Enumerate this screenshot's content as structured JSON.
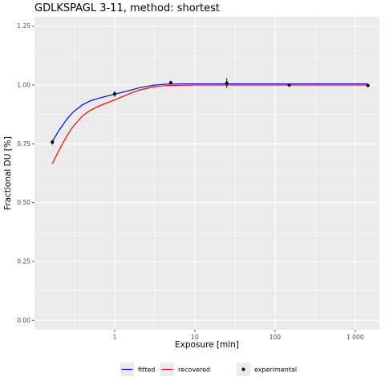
{
  "chart_data": {
    "type": "line",
    "title": "GDLKSPAGL 3-11, method: shortest",
    "xlabel": "Exposure [min]",
    "ylabel": "Fractional DU [%]",
    "x_scale": "log10",
    "xlim": [
      0.1,
      2000
    ],
    "ylim": [
      -0.04,
      1.29
    ],
    "x_ticks": [
      1,
      10,
      100,
      1000
    ],
    "x_tick_labels": [
      "1",
      "10",
      "100",
      "1 000"
    ],
    "y_ticks": [
      0,
      0.25,
      0.5,
      0.75,
      1.0,
      1.25
    ],
    "y_tick_labels": [
      "0.00",
      "0.25",
      "0.50",
      "0.75",
      "1.00",
      "1.25"
    ],
    "grid": true,
    "legend_position": "bottom",
    "series": [
      {
        "name": "fitted",
        "kind": "line",
        "color": "#0000ff",
        "x": [
          0.167,
          0.2,
          0.25,
          0.3,
          0.4,
          0.5,
          0.6,
          0.8,
          1,
          1.5,
          2,
          3,
          4,
          5,
          7,
          10,
          30,
          100,
          1000,
          1440
        ],
        "y": [
          0.76,
          0.805,
          0.852,
          0.884,
          0.917,
          0.933,
          0.942,
          0.953,
          0.961,
          0.976,
          0.988,
          0.999,
          1.003,
          1.004,
          1.005,
          1.005,
          1.005,
          1.005,
          1.005,
          1.005
        ]
      },
      {
        "name": "recovered",
        "kind": "line",
        "color": "#ff0000",
        "x": [
          0.167,
          0.2,
          0.25,
          0.3,
          0.4,
          0.5,
          0.6,
          0.8,
          1,
          1.5,
          2,
          3,
          4,
          5,
          7,
          10,
          30,
          100,
          1000,
          1440
        ],
        "y": [
          0.665,
          0.72,
          0.78,
          0.822,
          0.87,
          0.893,
          0.907,
          0.924,
          0.937,
          0.962,
          0.978,
          0.992,
          0.997,
          0.998,
          0.999,
          1.0,
          1.0,
          1.0,
          1.0,
          1.0
        ]
      },
      {
        "name": "experimental",
        "kind": "points",
        "color": "#000000",
        "x": [
          0.167,
          1,
          5,
          25,
          150,
          1440
        ],
        "y": [
          0.757,
          0.962,
          1.01,
          1.008,
          1.0,
          0.998
        ],
        "err": [
          0.01,
          0.012,
          0.008,
          0.02,
          0.004,
          0.004
        ]
      }
    ]
  }
}
